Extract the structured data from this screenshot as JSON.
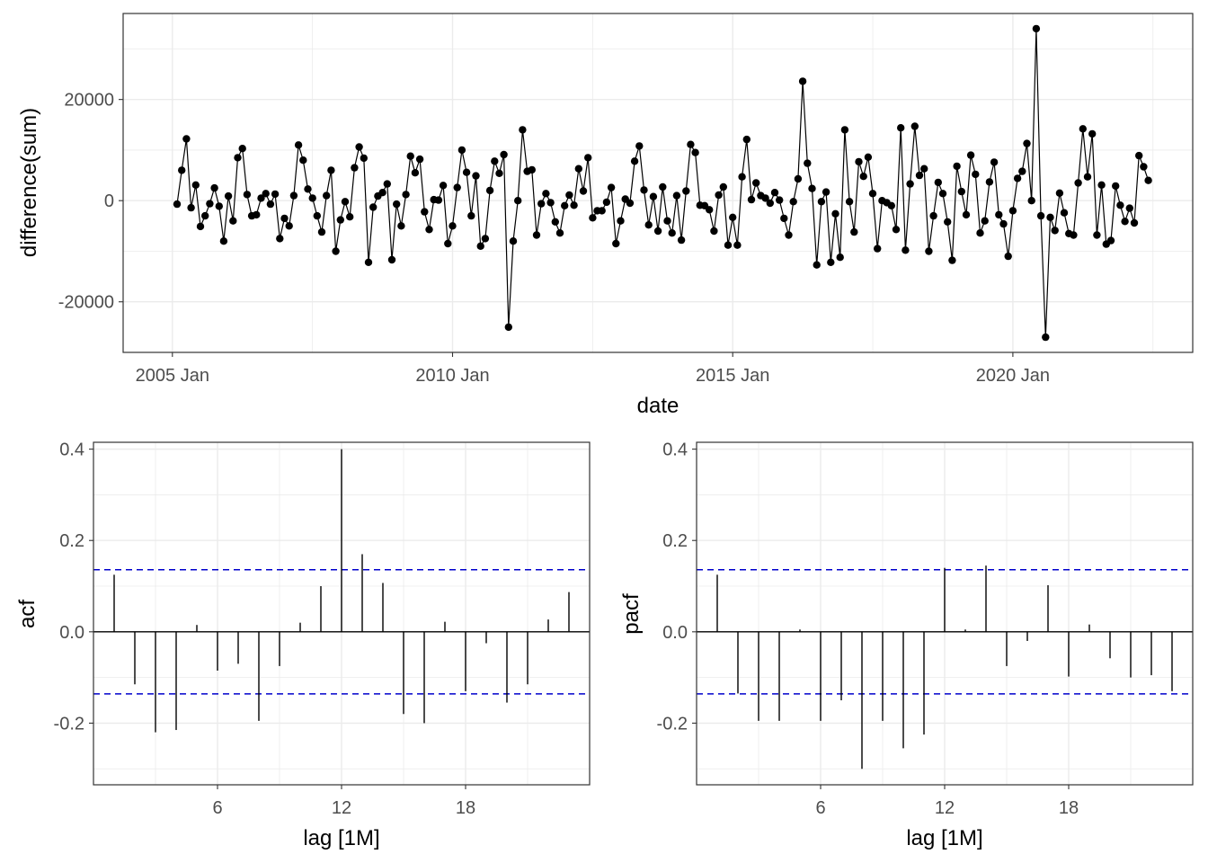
{
  "chart_data": [
    {
      "type": "line",
      "id": "timeseries",
      "xlabel": "date",
      "ylabel": "difference(sum)",
      "x_start": "2005 Feb",
      "x_step": "1 month",
      "x_tick_labels": [
        "2005 Jan",
        "2010 Jan",
        "2015 Jan",
        "2020 Jan"
      ],
      "y_ticks": [
        -20000,
        0,
        20000
      ],
      "y_tick_labels": [
        "-20000",
        "0",
        "20000"
      ],
      "ylim": [
        -30000,
        37000
      ],
      "values": [
        -700,
        6000,
        12200,
        -1400,
        3100,
        -5100,
        -3000,
        -600,
        2500,
        -1100,
        -8000,
        900,
        -4000,
        8500,
        10300,
        1200,
        -3000,
        -2800,
        500,
        1400,
        -700,
        1300,
        -7500,
        -3500,
        -5000,
        1000,
        11000,
        8000,
        2300,
        500,
        -3000,
        -6200,
        1000,
        6000,
        -10000,
        -3800,
        -200,
        -3200,
        6500,
        10600,
        8400,
        -12200,
        -1300,
        900,
        1600,
        3300,
        -11700,
        -700,
        -5000,
        1200,
        8800,
        5500,
        8200,
        -2200,
        -5700,
        200,
        100,
        3000,
        -8500,
        -5000,
        2600,
        10000,
        5600,
        -3000,
        4900,
        -9000,
        -7500,
        2000,
        7800,
        5400,
        9100,
        -25000,
        -8000,
        0,
        14000,
        5800,
        6100,
        -6800,
        -600,
        1400,
        -400,
        -4200,
        -6400,
        -1000,
        1100,
        -900,
        6300,
        1900,
        8500,
        -3400,
        -2000,
        -2000,
        -300,
        2600,
        -8500,
        -4000,
        300,
        -500,
        7800,
        10800,
        2100,
        -4800,
        800,
        -6000,
        2700,
        -4000,
        -6400,
        1000,
        -7800,
        1900,
        11100,
        9500,
        -900,
        -1000,
        -1800,
        -6000,
        1100,
        2700,
        -8800,
        -3300,
        -8800,
        4700,
        12100,
        200,
        3500,
        1000,
        500,
        -500,
        1600,
        100,
        -3500,
        -6800,
        -200,
        4300,
        23600,
        7400,
        2400,
        -12700,
        -200,
        1700,
        -12200,
        -2600,
        -11200,
        14000,
        -200,
        -6200,
        7700,
        4800,
        8600,
        1400,
        -9500,
        0,
        -400,
        -1000,
        -5700,
        14400,
        -9800,
        3300,
        14700,
        5000,
        6300,
        -10000,
        -3000,
        3600,
        1400,
        -4200,
        -11800,
        6800,
        1800,
        -2800,
        9000,
        5200,
        -6400,
        -4000,
        3700,
        7600,
        -2800,
        -4600,
        -11000,
        -2000,
        4400,
        5800,
        11300,
        0,
        34000,
        -3000,
        -27000,
        -3300,
        -5900,
        1500,
        -2400,
        -6500,
        -6800,
        3500,
        14200,
        4700,
        13200,
        -6800,
        3100,
        -8600,
        -7900,
        2900,
        -900,
        -4100,
        -1500,
        -4400,
        8900,
        6700,
        4000
      ]
    },
    {
      "type": "bar",
      "id": "acf",
      "xlabel": "lag [1M]",
      "ylabel": "acf",
      "categories": [
        1,
        2,
        3,
        4,
        5,
        6,
        7,
        8,
        9,
        10,
        11,
        12,
        13,
        14,
        15,
        16,
        17,
        18,
        19,
        20,
        21,
        22,
        23
      ],
      "values": [
        0.125,
        -0.115,
        -0.22,
        -0.215,
        0.015,
        -0.085,
        -0.07,
        -0.195,
        -0.075,
        0.02,
        0.1,
        0.4,
        0.17,
        0.107,
        -0.18,
        -0.2,
        0.022,
        -0.13,
        -0.025,
        -0.155,
        -0.115,
        0.027,
        0.087
      ],
      "confidence_bound": 0.136,
      "x_ticks": [
        6,
        12,
        18
      ],
      "x_tick_labels": [
        "6",
        "12",
        "18"
      ],
      "y_ticks": [
        -0.2,
        0.0,
        0.2,
        0.4
      ],
      "y_tick_labels": [
        "-0.2",
        "0.0",
        "0.2",
        "0.4"
      ],
      "ylim": [
        -0.335,
        0.415
      ],
      "xlim": [
        0,
        24
      ]
    },
    {
      "type": "bar",
      "id": "pacf",
      "xlabel": "lag [1M]",
      "ylabel": "pacf",
      "categories": [
        1,
        2,
        3,
        4,
        5,
        6,
        7,
        8,
        9,
        10,
        11,
        12,
        13,
        14,
        15,
        16,
        17,
        18,
        19,
        20,
        21,
        22,
        23
      ],
      "values": [
        0.125,
        -0.135,
        -0.195,
        -0.195,
        0.005,
        -0.195,
        -0.15,
        -0.3,
        -0.195,
        -0.255,
        -0.225,
        0.14,
        0.005,
        0.145,
        -0.075,
        -0.02,
        0.102,
        -0.098,
        0.016,
        -0.058,
        -0.1,
        -0.095,
        -0.13
      ],
      "confidence_bound": 0.136,
      "x_ticks": [
        6,
        12,
        18
      ],
      "x_tick_labels": [
        "6",
        "12",
        "18"
      ],
      "y_ticks": [
        -0.2,
        0.0,
        0.2,
        0.4
      ],
      "y_tick_labels": [
        "-0.2",
        "0.0",
        "0.2",
        "0.4"
      ],
      "ylim": [
        -0.335,
        0.415
      ],
      "xlim": [
        0,
        24
      ]
    }
  ],
  "colors": {
    "line": "#000000",
    "bound": "#0000cc",
    "grid": "#ebebeb",
    "panel_border": "#333333",
    "tick_text": "#4d4d4d"
  }
}
